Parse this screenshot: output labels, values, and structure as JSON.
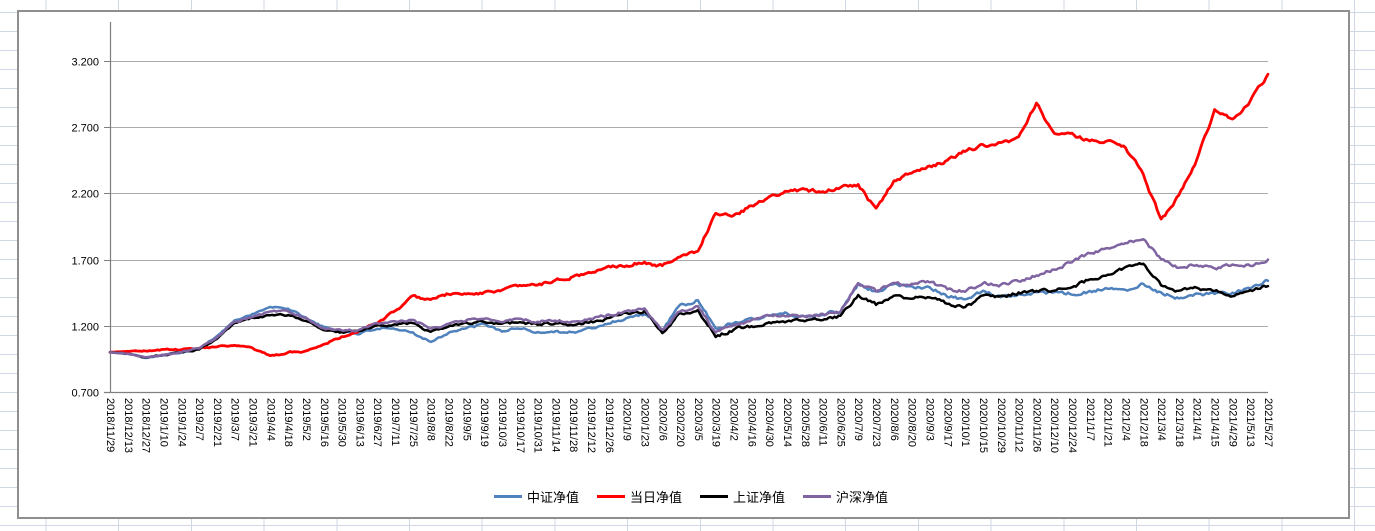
{
  "chart": {
    "y_axis": {
      "tick_labels": [
        "0.700",
        "1.200",
        "1.700",
        "2.200",
        "2.700",
        "3.200"
      ]
    },
    "legend_labels": [
      "中证净值",
      "当日净值",
      "上证净值",
      "沪深净值"
    ],
    "colors": {
      "zhongzheng_blue": "#4F81BD",
      "dangri_red": "#FF0000",
      "shangzheng_black": "#000000",
      "hushen_purple": "#8064A2",
      "gridline": "#ababab",
      "axis": "#7f7f7f",
      "excel_grid": "#d0d7e5"
    }
  },
  "chart_data": {
    "type": "line",
    "title": "",
    "xlabel": "",
    "ylabel": "",
    "grid": true,
    "legend_position": "bottom",
    "ylim": [
      0.7,
      3.5
    ],
    "y_ticks": [
      0.7,
      1.2,
      1.7,
      2.2,
      2.7,
      3.2
    ],
    "y_tick_labels": [
      "0.700",
      "1.200",
      "1.700",
      "2.200",
      "2.700",
      "3.200"
    ],
    "x": [
      "2018/11/29",
      "2018/12/13",
      "2018/12/27",
      "2019/1/10",
      "2019/1/24",
      "2019/2/7",
      "2019/2/21",
      "2019/3/7",
      "2019/3/21",
      "2019/4/4",
      "2019/4/18",
      "2019/5/2",
      "2019/5/16",
      "2019/5/30",
      "2019/6/13",
      "2019/6/27",
      "2019/7/11",
      "2019/7/25",
      "2019/8/8",
      "2019/8/22",
      "2019/9/5",
      "2019/9/19",
      "2019/10/3",
      "2019/10/17",
      "2019/10/31",
      "2019/11/14",
      "2019/11/28",
      "2019/12/12",
      "2019/12/26",
      "2020/1/9",
      "2020/1/23",
      "2020/2/6",
      "2020/2/20",
      "2020/3/5",
      "2020/3/19",
      "2020/4/2",
      "2020/4/16",
      "2020/4/30",
      "2020/5/14",
      "2020/5/28",
      "2020/6/11",
      "2020/6/25",
      "2020/7/9",
      "2020/7/23",
      "2020/8/6",
      "2020/8/20",
      "2020/9/3",
      "2020/9/17",
      "2020/10/1",
      "2020/10/15",
      "2020/10/29",
      "2020/11/12",
      "2020/11/26",
      "2020/12/10",
      "2020/12/24",
      "2021/1/7",
      "2021/1/21",
      "2021/2/4",
      "2021/2/18",
      "2021/3/4",
      "2021/3/18",
      "2021/4/1",
      "2021/4/15",
      "2021/4/29",
      "2021/5/13",
      "2021/5/27"
    ],
    "series": [
      {
        "name": "中证净值",
        "color": "#4F81BD",
        "values": [
          1.0,
          0.99,
          0.96,
          0.98,
          1.0,
          1.03,
          1.12,
          1.24,
          1.29,
          1.34,
          1.33,
          1.26,
          1.19,
          1.16,
          1.14,
          1.18,
          1.17,
          1.15,
          1.08,
          1.15,
          1.18,
          1.21,
          1.16,
          1.18,
          1.15,
          1.16,
          1.15,
          1.18,
          1.22,
          1.26,
          1.29,
          1.17,
          1.35,
          1.39,
          1.18,
          1.22,
          1.26,
          1.28,
          1.29,
          1.27,
          1.29,
          1.31,
          1.52,
          1.46,
          1.51,
          1.5,
          1.49,
          1.42,
          1.4,
          1.46,
          1.42,
          1.44,
          1.46,
          1.45,
          1.44,
          1.46,
          1.48,
          1.47,
          1.52,
          1.45,
          1.41,
          1.44,
          1.44,
          1.45,
          1.48,
          1.54
        ]
      },
      {
        "name": "当日净值",
        "color": "#FF0000",
        "values": [
          1.0,
          1.01,
          1.01,
          1.02,
          1.02,
          1.03,
          1.04,
          1.05,
          1.03,
          0.97,
          1.0,
          1.01,
          1.06,
          1.12,
          1.16,
          1.22,
          1.31,
          1.42,
          1.4,
          1.44,
          1.44,
          1.45,
          1.47,
          1.5,
          1.51,
          1.54,
          1.57,
          1.6,
          1.65,
          1.66,
          1.68,
          1.65,
          1.72,
          1.77,
          2.05,
          2.04,
          2.1,
          2.17,
          2.22,
          2.22,
          2.22,
          2.24,
          2.27,
          2.08,
          2.29,
          2.36,
          2.4,
          2.45,
          2.52,
          2.56,
          2.58,
          2.62,
          2.88,
          2.65,
          2.65,
          2.59,
          2.6,
          2.55,
          2.34,
          2.0,
          2.18,
          2.45,
          2.83,
          2.76,
          2.9,
          3.1
        ]
      },
      {
        "name": "上证净值",
        "color": "#000000",
        "values": [
          1.0,
          0.99,
          0.96,
          0.98,
          1.0,
          1.02,
          1.1,
          1.22,
          1.26,
          1.28,
          1.28,
          1.24,
          1.17,
          1.15,
          1.16,
          1.2,
          1.21,
          1.22,
          1.15,
          1.19,
          1.22,
          1.23,
          1.21,
          1.23,
          1.21,
          1.22,
          1.21,
          1.23,
          1.26,
          1.29,
          1.31,
          1.15,
          1.29,
          1.32,
          1.12,
          1.17,
          1.2,
          1.23,
          1.24,
          1.23,
          1.25,
          1.27,
          1.43,
          1.36,
          1.42,
          1.41,
          1.42,
          1.36,
          1.34,
          1.42,
          1.42,
          1.45,
          1.46,
          1.47,
          1.49,
          1.55,
          1.59,
          1.64,
          1.67,
          1.5,
          1.46,
          1.49,
          1.46,
          1.43,
          1.47,
          1.5
        ]
      },
      {
        "name": "沪深净值",
        "color": "#8064A2",
        "values": [
          1.0,
          0.99,
          0.96,
          0.98,
          1.0,
          1.03,
          1.11,
          1.23,
          1.27,
          1.31,
          1.31,
          1.26,
          1.18,
          1.16,
          1.17,
          1.22,
          1.23,
          1.24,
          1.18,
          1.21,
          1.24,
          1.25,
          1.23,
          1.25,
          1.23,
          1.24,
          1.23,
          1.25,
          1.28,
          1.31,
          1.33,
          1.17,
          1.31,
          1.34,
          1.15,
          1.2,
          1.24,
          1.27,
          1.28,
          1.27,
          1.29,
          1.31,
          1.52,
          1.46,
          1.52,
          1.52,
          1.53,
          1.47,
          1.46,
          1.52,
          1.51,
          1.54,
          1.58,
          1.63,
          1.68,
          1.75,
          1.79,
          1.83,
          1.85,
          1.7,
          1.64,
          1.66,
          1.63,
          1.66,
          1.65,
          1.7
        ]
      }
    ]
  }
}
